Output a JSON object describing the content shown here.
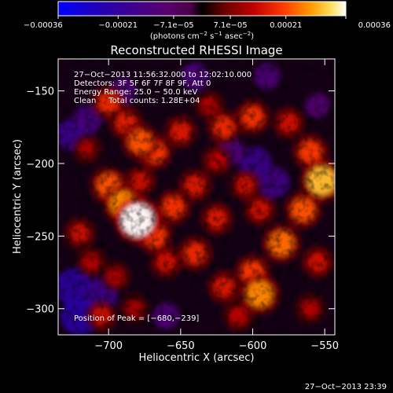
{
  "chart_data": {
    "type": "heatmap",
    "title": "Reconstructed RHESSI Image",
    "xlabel": "Heliocentric X (arcsec)",
    "ylabel": "Heliocentric Y (arcsec)",
    "xlim": [
      -735,
      -543
    ],
    "ylim": [
      -318,
      -128
    ],
    "xticks": [
      -700,
      -650,
      -600,
      -550
    ],
    "xtick_labels": [
      "−700",
      "−650",
      "−600",
      "−550"
    ],
    "yticks": [
      -150,
      -200,
      -250,
      -300
    ],
    "ytick_labels": [
      "−150",
      "−200",
      "−250",
      "−300"
    ],
    "colorbar": {
      "min": -0.00036,
      "max": 0.00036,
      "ticks": [
        -0.00036,
        -0.00021,
        -7.1e-05,
        7.1e-05,
        0.00021,
        0.00036
      ],
      "tick_labels": [
        "−0.00036",
        "−0.00021",
        "−7.1e−05",
        "7.1e−05",
        "0.00021",
        "0.00036"
      ],
      "unit_prefix": "(photons cm",
      "unit_exp1": "−2",
      "unit_mid": " s",
      "unit_exp2": "−1",
      "unit_mid2": " asec",
      "unit_exp3": "−2",
      "unit_suffix": ")"
    },
    "annotations": [
      "27−Oct−2013 11:56:32.000 to 12:02:10.000",
      "Detectors: 3F 5F 6F 7F 8F 9F, Att 0",
      "Energy Range: 25.0 − 50.0 keV",
      "Clean     Total counts: 1.28E+04"
    ],
    "peak_label": "Position of Peak = [−680,−239]",
    "peak_position": [
      -680,
      -239
    ],
    "bright_sources": [
      {
        "x": -700,
        "y": -158,
        "value": 0.00018
      },
      {
        "x": -688,
        "y": -172,
        "value": 0.00017
      },
      {
        "x": -678,
        "y": -185,
        "value": 0.00022
      },
      {
        "x": -668,
        "y": -192,
        "value": 0.0002
      },
      {
        "x": -650,
        "y": -178,
        "value": 0.00016
      },
      {
        "x": -620,
        "y": -175,
        "value": 0.00018
      },
      {
        "x": -600,
        "y": -168,
        "value": 0.00019
      },
      {
        "x": -575,
        "y": -172,
        "value": 0.00015
      },
      {
        "x": -560,
        "y": -192,
        "value": 0.0002
      },
      {
        "x": -552,
        "y": -212,
        "value": 0.0003
      },
      {
        "x": -565,
        "y": -232,
        "value": 0.00022
      },
      {
        "x": -580,
        "y": -255,
        "value": 0.00024
      },
      {
        "x": -600,
        "y": -275,
        "value": 0.0002
      },
      {
        "x": -595,
        "y": -290,
        "value": 0.00026
      },
      {
        "x": -620,
        "y": -285,
        "value": 0.00016
      },
      {
        "x": -640,
        "y": -262,
        "value": 0.00018
      },
      {
        "x": -660,
        "y": -268,
        "value": 0.00015
      },
      {
        "x": -655,
        "y": -230,
        "value": 0.00019
      },
      {
        "x": -640,
        "y": -215,
        "value": 0.00016
      },
      {
        "x": -700,
        "y": -215,
        "value": 0.00022
      },
      {
        "x": -690,
        "y": -228,
        "value": 0.00026
      },
      {
        "x": -680,
        "y": -239,
        "value": 0.00036
      },
      {
        "x": -668,
        "y": -250,
        "value": 0.0002
      },
      {
        "x": -720,
        "y": -248,
        "value": 0.00014
      },
      {
        "x": -712,
        "y": -268,
        "value": 0.00012
      },
      {
        "x": -695,
        "y": -278,
        "value": 0.00012
      },
      {
        "x": -705,
        "y": -305,
        "value": 0.00014
      },
      {
        "x": -682,
        "y": -300,
        "value": 0.00011
      },
      {
        "x": -625,
        "y": -238,
        "value": 0.00016
      },
      {
        "x": -605,
        "y": -215,
        "value": 0.00014
      },
      {
        "x": -595,
        "y": -232,
        "value": 0.00015
      },
      {
        "x": -555,
        "y": -268,
        "value": 0.00015
      },
      {
        "x": -560,
        "y": -300,
        "value": 0.00012
      },
      {
        "x": -630,
        "y": -160,
        "value": 0.00012
      },
      {
        "x": -715,
        "y": -190,
        "value": 0.00011
      },
      {
        "x": -610,
        "y": -305,
        "value": 0.00013
      },
      {
        "x": -625,
        "y": -198,
        "value": 0.00013
      },
      {
        "x": -678,
        "y": -212,
        "value": 0.00014
      }
    ],
    "negative_regions": [
      {
        "x": -725,
        "y": -285,
        "value": -0.00022
      },
      {
        "x": -720,
        "y": -305,
        "value": -0.00024
      },
      {
        "x": -705,
        "y": -290,
        "value": -0.00018
      },
      {
        "x": -725,
        "y": -180,
        "value": -0.00018
      },
      {
        "x": -715,
        "y": -170,
        "value": -0.00014
      },
      {
        "x": -690,
        "y": -150,
        "value": -0.00012
      },
      {
        "x": -640,
        "y": -140,
        "value": -0.00013
      },
      {
        "x": -590,
        "y": -140,
        "value": -0.00012
      },
      {
        "x": -598,
        "y": -200,
        "value": -0.00018
      },
      {
        "x": -585,
        "y": -213,
        "value": -0.00016
      },
      {
        "x": -615,
        "y": -192,
        "value": -0.00012
      },
      {
        "x": -660,
        "y": -305,
        "value": -0.00012
      },
      {
        "x": -555,
        "y": -160,
        "value": -0.0001
      }
    ],
    "colormap": [
      [
        0.0,
        "#0000ff"
      ],
      [
        0.12,
        "#1e00c0"
      ],
      [
        0.25,
        "#3c0090"
      ],
      [
        0.38,
        "#5a006e"
      ],
      [
        0.46,
        "#4a0046"
      ],
      [
        0.5,
        "#000000"
      ],
      [
        0.58,
        "#6e0000"
      ],
      [
        0.68,
        "#c00000"
      ],
      [
        0.78,
        "#ff3800"
      ],
      [
        0.88,
        "#ff9c00"
      ],
      [
        0.95,
        "#ffe060"
      ],
      [
        1.0,
        "#ffffff"
      ]
    ]
  },
  "footer": {
    "timestamp": "27−Oct−2013 23:39"
  }
}
